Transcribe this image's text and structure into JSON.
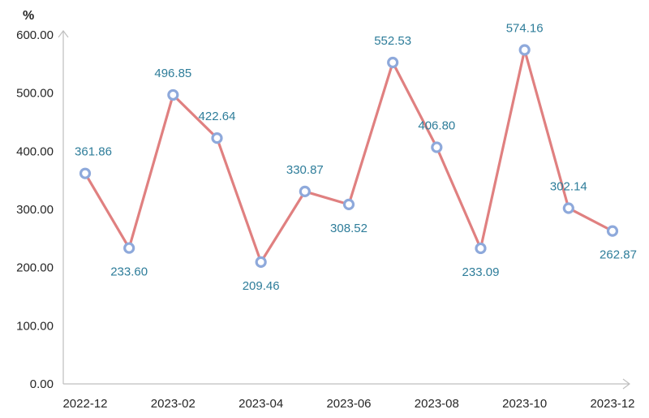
{
  "chart_data": {
    "type": "line",
    "title": "",
    "xlabel": "",
    "ylabel": "%",
    "ylim": [
      0,
      600
    ],
    "y_ticks": [
      "0.00",
      "100.00",
      "200.00",
      "300.00",
      "400.00",
      "500.00",
      "600.00"
    ],
    "x": [
      "2022-12",
      "2023-01",
      "2023-02",
      "2023-03",
      "2023-04",
      "2023-05",
      "2023-06",
      "2023-07",
      "2023-08",
      "2023-09",
      "2023-10",
      "2023-11",
      "2023-12"
    ],
    "x_tick_labels": [
      "2022-12",
      "2023-02",
      "2023-04",
      "2023-06",
      "2023-08",
      "2023-10",
      "2023-12"
    ],
    "series": [
      {
        "values": [
          361.86,
          233.6,
          496.85,
          422.64,
          209.46,
          330.87,
          308.52,
          552.53,
          406.8,
          233.09,
          574.16,
          302.14,
          262.87
        ],
        "labels": [
          "361.86",
          "233.60",
          "496.85",
          "422.64",
          "209.46",
          "330.87",
          "308.52",
          "552.53",
          "406.80",
          "233.09",
          "574.16",
          "302.14",
          "262.87"
        ],
        "label_position": [
          "above",
          "below",
          "above",
          "above",
          "below",
          "above",
          "below",
          "above",
          "above",
          "below",
          "above",
          "above",
          "below"
        ]
      }
    ],
    "colors": {
      "line": "#e08080",
      "marker": "#8ea9db",
      "label": "#2e7d9a"
    },
    "grid": false,
    "legend": "none"
  }
}
